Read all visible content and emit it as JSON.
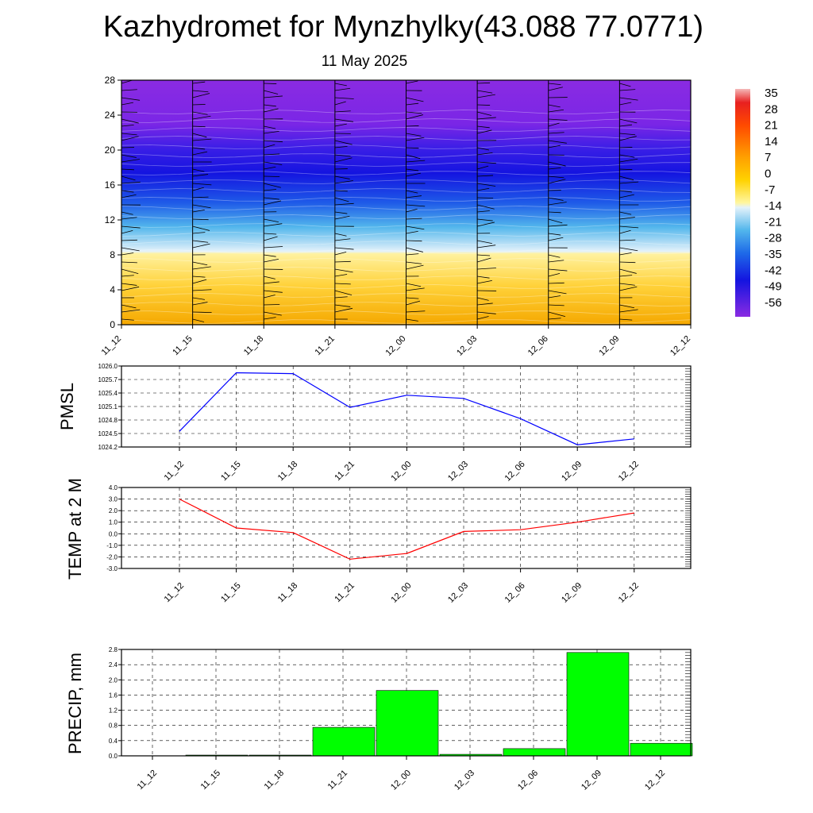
{
  "title": "Kazhydromet for Mynzhylky(43.088 77.0771)",
  "subtitle": "11 May 2025",
  "chart_data": [
    {
      "type": "heatmap",
      "name": "temperature-cross-section",
      "y_ticks": [
        "0",
        "4",
        "8",
        "12",
        "16",
        "20",
        "24",
        "28"
      ],
      "ylim": [
        0,
        28
      ],
      "x_ticks": [
        "11_12",
        "11_15",
        "11_18",
        "11_21",
        "12_00",
        "12_03",
        "12_06",
        "12_09",
        "12_12"
      ],
      "colorbar": {
        "labels": [
          "35",
          "28",
          "21",
          "14",
          "7",
          "0",
          "-7",
          "-14",
          "-21",
          "-28",
          "-35",
          "-42",
          "-49",
          "-56"
        ],
        "range": [
          -60,
          38
        ]
      },
      "colors": {
        "surface": "#f5a800",
        "warm": "#fff2a0",
        "cold_light": "#d8eef8",
        "cold_mid": "#1e96e8",
        "cold_dark": "#1414e0",
        "top": "#8a2be2"
      }
    },
    {
      "type": "line",
      "ylabel": "PMSL",
      "categories": [
        "11_12",
        "11_15",
        "11_18",
        "11_21",
        "12_00",
        "12_03",
        "12_06",
        "12_09",
        "12_12"
      ],
      "values": [
        1024.55,
        1025.85,
        1025.83,
        1025.08,
        1025.35,
        1025.28,
        1024.83,
        1024.25,
        1024.38
      ],
      "ylim": [
        1024.2,
        1026.0
      ],
      "y_ticks": [
        "1024.2",
        "1024.5",
        "1024.8",
        "1025.1",
        "1025.4",
        "1025.7",
        "1026.0"
      ],
      "color": "#0000ff",
      "grid": true
    },
    {
      "type": "line",
      "ylabel": "TEMP at 2 M",
      "categories": [
        "11_12",
        "11_15",
        "11_18",
        "11_21",
        "12_00",
        "12_03",
        "12_06",
        "12_09",
        "12_12"
      ],
      "values": [
        3.0,
        0.5,
        0.1,
        -2.2,
        -1.7,
        0.2,
        0.35,
        1.0,
        1.8
      ],
      "ylim": [
        -3.0,
        4.0
      ],
      "y_ticks": [
        "-3.0",
        "-2.0",
        "-1.0",
        "0.0",
        "1.0",
        "2.0",
        "3.0",
        "4.0"
      ],
      "color": "#ff0000",
      "grid": true
    },
    {
      "type": "bar",
      "ylabel": "PRECIP, mm",
      "categories": [
        "11_12",
        "11_15",
        "11_18",
        "11_21",
        "12_00",
        "12_03",
        "12_06",
        "12_09",
        "12_12"
      ],
      "values": [
        0.0,
        0.02,
        0.02,
        0.75,
        1.72,
        0.04,
        0.19,
        2.72,
        0.33
      ],
      "ylim": [
        0.0,
        2.8
      ],
      "y_ticks": [
        "0.0",
        "0.4",
        "0.8",
        "1.2",
        "1.6",
        "2.0",
        "2.4",
        "2.8"
      ],
      "color": "#00ff00",
      "grid": true
    }
  ]
}
